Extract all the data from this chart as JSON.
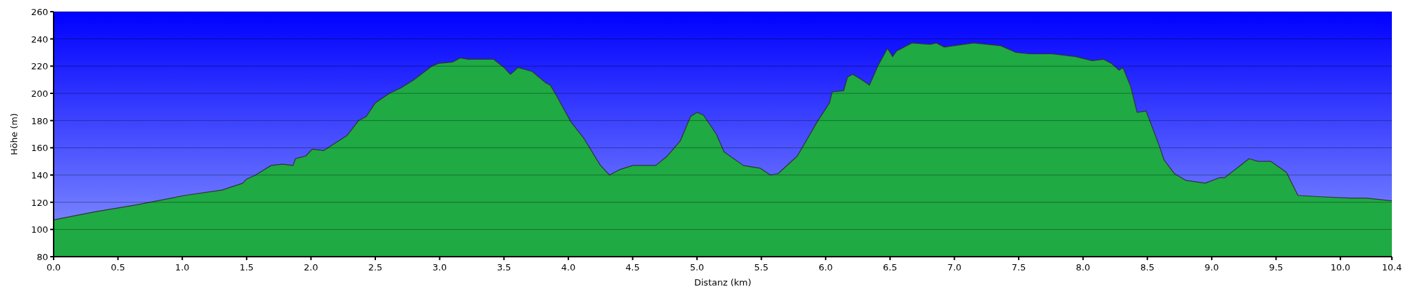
{
  "chart_data": {
    "type": "area",
    "xlabel": "Distanz (km)",
    "ylabel": "Höhe (m)",
    "xlim": [
      0,
      10.4
    ],
    "ylim": [
      80,
      260
    ],
    "xticks": [
      {
        "value": 0,
        "label": "0.0"
      },
      0.5,
      {
        "value": 1,
        "label": "1.0"
      },
      1.5,
      {
        "value": 2,
        "label": "2.0"
      },
      2.5,
      {
        "value": 3,
        "label": "3.0"
      },
      3.5,
      {
        "value": 4,
        "label": "4.0"
      },
      4.5,
      {
        "value": 5,
        "label": "5.0"
      },
      5.5,
      {
        "value": 6,
        "label": "6.0"
      },
      6.5,
      {
        "value": 7,
        "label": "7.0"
      },
      7.5,
      {
        "value": 8,
        "label": "8.0"
      },
      8.5,
      {
        "value": 9,
        "label": "9.0"
      },
      9.5,
      {
        "value": 10,
        "label": "10.0"
      },
      10.4
    ],
    "yticks": [
      80,
      100,
      120,
      140,
      160,
      180,
      200,
      220,
      240,
      260
    ],
    "grid": "y",
    "series": [
      {
        "color": "#1faa44",
        "x": [
          0,
          0.32,
          0.64,
          1.02,
          1.31,
          1.47,
          1.5,
          1.57,
          1.69,
          1.78,
          1.86,
          1.88,
          1.96,
          2.01,
          2.1,
          2.18,
          2.28,
          2.37,
          2.43,
          2.5,
          2.61,
          2.7,
          2.8,
          2.94,
          2.99,
          3.1,
          3.16,
          3.22,
          3.42,
          3.5,
          3.55,
          3.61,
          3.72,
          3.82,
          3.86,
          3.91,
          4.02,
          4.12,
          4.25,
          4.32,
          4.4,
          4.5,
          4.68,
          4.77,
          4.87,
          4.95,
          5,
          5.05,
          5.15,
          5.21,
          5.36,
          5.49,
          5.57,
          5.63,
          5.78,
          5.94,
          6.03,
          6.05,
          6.14,
          6.17,
          6.21,
          6.28,
          6.34,
          6.41,
          6.48,
          6.52,
          6.55,
          6.67,
          6.81,
          6.86,
          6.92,
          7.15,
          7.36,
          7.48,
          7.59,
          7.76,
          7.94,
          8.07,
          8.16,
          8.22,
          8.28,
          8.31,
          8.37,
          8.42,
          8.49,
          8.59,
          8.63,
          8.71,
          8.8,
          8.95,
          9.06,
          9.1,
          9.29,
          9.36,
          9.46,
          9.58,
          9.67,
          9.85,
          10.08,
          10.2,
          10.4
        ],
        "values": [
          107,
          113,
          118,
          125,
          129,
          134,
          137,
          140,
          147,
          148,
          147,
          152,
          154,
          159,
          158,
          163,
          169,
          180,
          183,
          193,
          200,
          204,
          210,
          220,
          222,
          223,
          226,
          225,
          225,
          219,
          214,
          219,
          216,
          208,
          206,
          198,
          179,
          167,
          147,
          140,
          144,
          147,
          147,
          154,
          165,
          183,
          186,
          184,
          170,
          157,
          147,
          145,
          140,
          141,
          154,
          180,
          193,
          201,
          202,
          212,
          214,
          210,
          206,
          221,
          233,
          227,
          231,
          237,
          236,
          237,
          234,
          237,
          235,
          230,
          229,
          229,
          227,
          224,
          225,
          222,
          217,
          219,
          205,
          186,
          187,
          162,
          151,
          141,
          136,
          134,
          138,
          138,
          152,
          150,
          150,
          142,
          125,
          124,
          123,
          123,
          121
        ]
      }
    ]
  }
}
